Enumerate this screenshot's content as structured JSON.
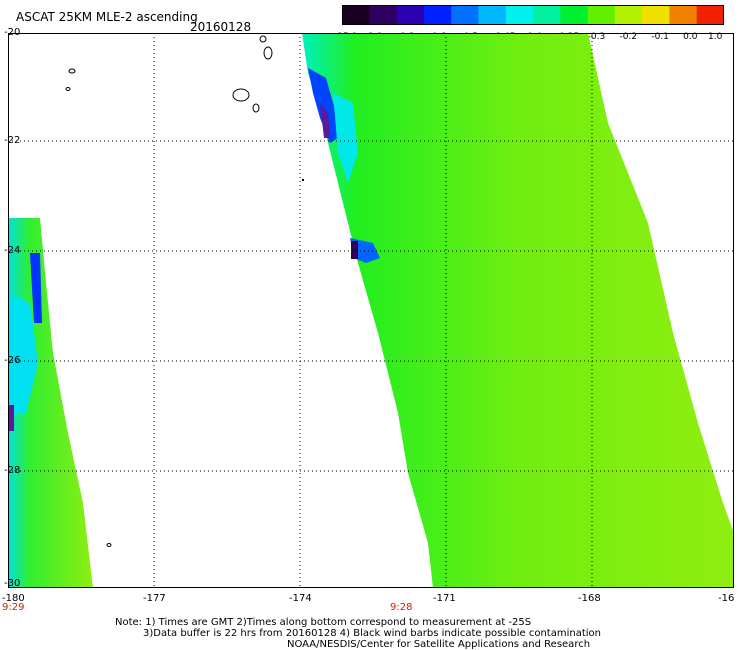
{
  "header": {
    "title": "ASCAT 25KM MLE-2 ascending",
    "date": "20160128"
  },
  "colorbar": {
    "labels": [
      "-15.0",
      "-1.0",
      "-0.8",
      "-0.6",
      "-0.5",
      "-0.45",
      "-0.4",
      "-0.35",
      "-0.3",
      "-0.2",
      "-0.1",
      "0.0",
      "1.0"
    ],
    "colors": [
      "#1a0020",
      "#300060",
      "#2a00b0",
      "#0020ff",
      "#0070ff",
      "#00b8ff",
      "#00f0f0",
      "#00f0a0",
      "#00f030",
      "#60f000",
      "#b0f000",
      "#f0e000",
      "#f08000",
      "#f02000"
    ]
  },
  "axes": {
    "lat_labels": [
      "-20",
      "-22",
      "-24",
      "-26",
      "-28",
      "-30"
    ],
    "lon_labels": [
      "-180",
      "-177",
      "-174",
      "-171",
      "-168",
      "-16"
    ],
    "time_labels": [
      "9:29",
      "9:28"
    ]
  },
  "notes": {
    "line1": "Note: 1) Times are GMT 2)Times along bottom correspond to measurement at -25S",
    "line2": "3)Data buffer is 22 hrs from 20160128 4) Black wind barbs indicate possible contamination",
    "line3": "NOAA/NESDIS/Center for Satellite Applications and Research"
  }
}
